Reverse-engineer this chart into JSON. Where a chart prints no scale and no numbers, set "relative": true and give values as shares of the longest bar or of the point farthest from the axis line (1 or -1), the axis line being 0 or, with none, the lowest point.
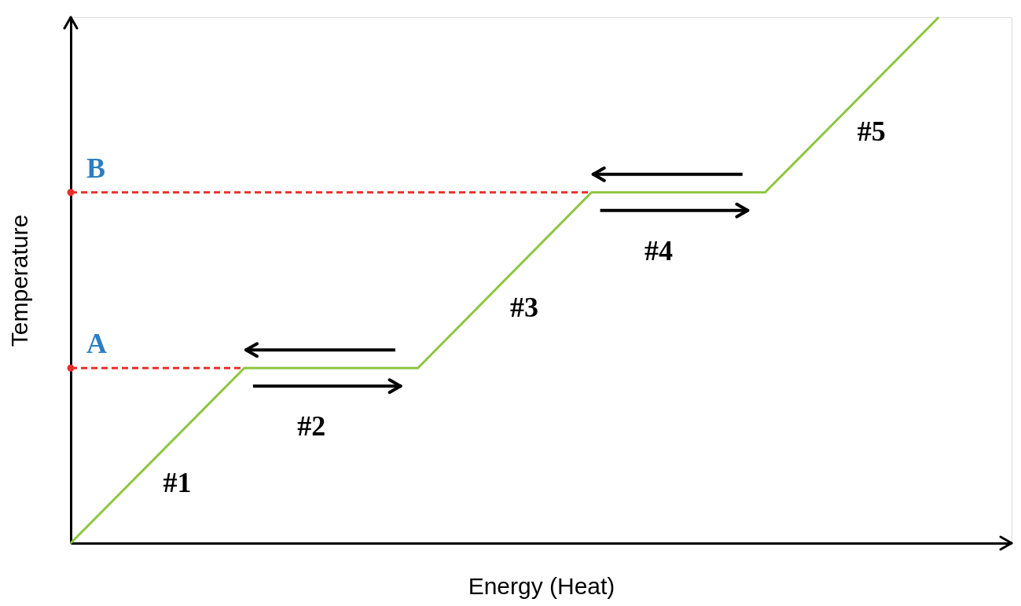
{
  "chart_data": {
    "type": "line",
    "relative": true,
    "xlabel": "Energy (Heat)",
    "ylabel": "Temperature",
    "categories": [
      null,
      null,
      null,
      null,
      null,
      null
    ],
    "series": [
      {
        "color": "#8cc63e",
        "values": [
          0,
          0.333,
          0.333,
          0.667,
          0.667,
          1
        ]
      }
    ],
    "ref_lines": [
      {
        "axis": "y",
        "value": 0.333,
        "label": "A",
        "color": "#e8302a",
        "line_style": "dashed"
      },
      {
        "axis": "y",
        "value": 0.667,
        "label": "B",
        "color": "#e8302a",
        "line_style": "dashed"
      }
    ],
    "annotations": [
      "#1",
      "#2",
      "#3",
      "#4",
      "#5"
    ],
    "grid": false,
    "tick_labels": false,
    "marker": "none",
    "line_style": "solid"
  }
}
